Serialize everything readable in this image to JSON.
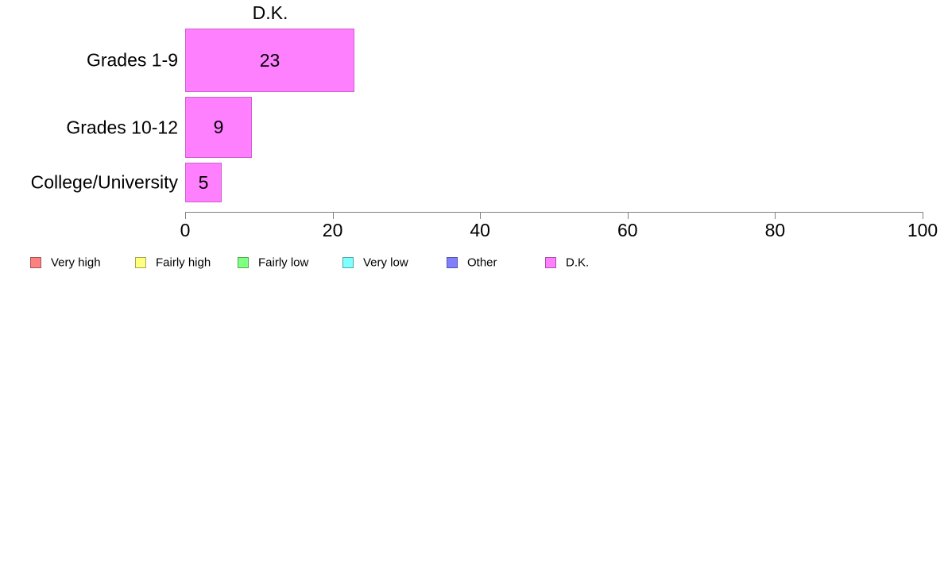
{
  "chart_data": {
    "type": "bar",
    "orientation": "horizontal",
    "title": "D.K.",
    "categories": [
      "Grades 1-9",
      "Grades 10-12",
      "College/University"
    ],
    "values": [
      23,
      9,
      5
    ],
    "xlabel": "",
    "ylabel": "",
    "xlim": [
      0,
      100
    ],
    "x_ticks": [
      0,
      20,
      40,
      60,
      80,
      100
    ],
    "grid": false,
    "bar_fill": "#ff80ff",
    "bar_border": "#d05ed0",
    "axis_color": "#808080",
    "text_color": "#000000",
    "legend_position": "bottom-left",
    "legend": [
      {
        "label": "Very high",
        "fill": "#ff8080",
        "border": "#a65454"
      },
      {
        "label": "Fairly high",
        "fill": "#ffff80",
        "border": "#a6a654"
      },
      {
        "label": "Fairly low",
        "fill": "#80ff80",
        "border": "#54a654"
      },
      {
        "label": "Very low",
        "fill": "#80ffff",
        "border": "#54a6a6"
      },
      {
        "label": "Other",
        "fill": "#8080ff",
        "border": "#5454a6"
      },
      {
        "label": "D.K.",
        "fill": "#ff80ff",
        "border": "#a654a6"
      }
    ]
  }
}
